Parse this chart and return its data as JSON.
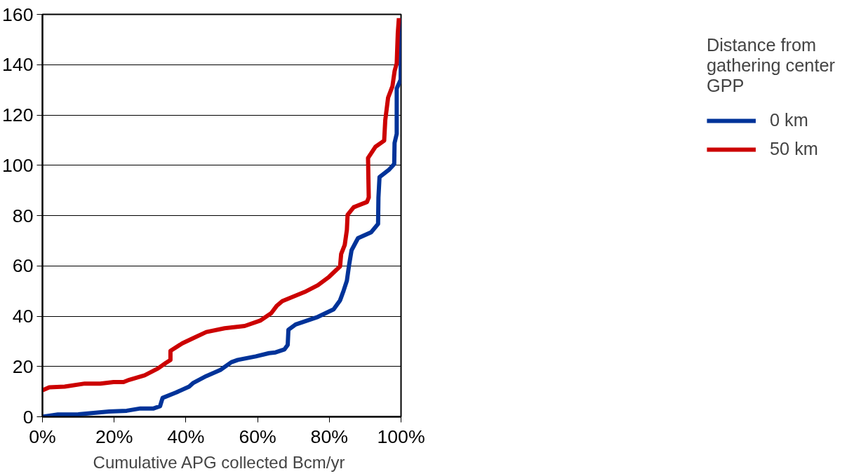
{
  "chart_data": {
    "type": "line",
    "xlabel": "Cumulative  APG collected Bcm/yr",
    "legend_title": "Distance from\ngathering center\nGPP",
    "xlim": [
      0,
      100
    ],
    "ylim": [
      0,
      160
    ],
    "xticks": [
      {
        "value": 0,
        "label": "0%"
      },
      {
        "value": 20,
        "label": "20%"
      },
      {
        "value": 40,
        "label": "40%"
      },
      {
        "value": 60,
        "label": "60%"
      },
      {
        "value": 80,
        "label": "80%"
      },
      {
        "value": 100,
        "label": "100%"
      }
    ],
    "yticks": [
      0,
      20,
      40,
      60,
      80,
      100,
      120,
      140,
      160
    ],
    "grid": "y",
    "legend": "right",
    "marker": "none",
    "line_style": "solid",
    "series": [
      {
        "name": "0 km",
        "color": "#003399",
        "x": [
          0,
          4.3,
          10,
          18.6,
          23.5,
          27.3,
          31,
          32.8,
          33.5,
          37.2,
          40.9,
          42.1,
          45.7,
          49.6,
          52.7,
          54.5,
          59.5,
          63.2,
          65,
          67.5,
          68.4,
          68.6,
          70.6,
          76.8,
          81.2,
          83,
          84,
          84.9,
          85.5,
          86.2,
          88,
          91.7,
          93.6,
          93.7,
          94,
          96.7,
          98.1,
          98.2,
          98.8,
          98.8,
          99.9,
          100
        ],
        "values": [
          0,
          0.9,
          1,
          2.1,
          2.4,
          3.3,
          3.3,
          4.2,
          7.5,
          9.6,
          12,
          13.5,
          16.2,
          18.6,
          21.7,
          22.6,
          24,
          25.3,
          25.6,
          26.8,
          28.6,
          34.6,
          36.7,
          39.7,
          42.7,
          46.3,
          50.2,
          54.1,
          60.2,
          66.2,
          71,
          73.4,
          76.7,
          87.2,
          95.3,
          98.3,
          100.5,
          108.9,
          112.5,
          130.5,
          134,
          158.5
        ]
      },
      {
        "name": "50 km",
        "color": "#cc0000",
        "x": [
          0,
          1.9,
          6.2,
          11.8,
          16.1,
          19.8,
          22.6,
          24.2,
          28.5,
          32.2,
          34.4,
          35.7,
          35.7,
          39,
          42.1,
          45.7,
          50.8,
          56.4,
          60.7,
          63.8,
          65.4,
          66.9,
          73.1,
          76.8,
          79.9,
          83,
          83.3,
          84.3,
          84.9,
          85.1,
          86.8,
          90.5,
          91,
          90.8,
          92.9,
          95.3,
          95.6,
          96.4,
          97.6,
          98.2,
          98.8,
          99.1,
          99.4
        ],
        "values": [
          10.5,
          11.7,
          12,
          13.2,
          13.2,
          13.8,
          13.8,
          14.7,
          16.5,
          19.2,
          21.4,
          22.6,
          26.2,
          29.2,
          31.3,
          33.7,
          35.2,
          36.1,
          38.2,
          41.2,
          44.2,
          46,
          49.6,
          52.3,
          55.6,
          59.8,
          64.7,
          68.3,
          74.3,
          80.3,
          83.3,
          85.4,
          87.2,
          102.9,
          107.4,
          109.8,
          117.9,
          126.9,
          131.4,
          137.4,
          140.5,
          152.5,
          158.5
        ]
      }
    ]
  }
}
